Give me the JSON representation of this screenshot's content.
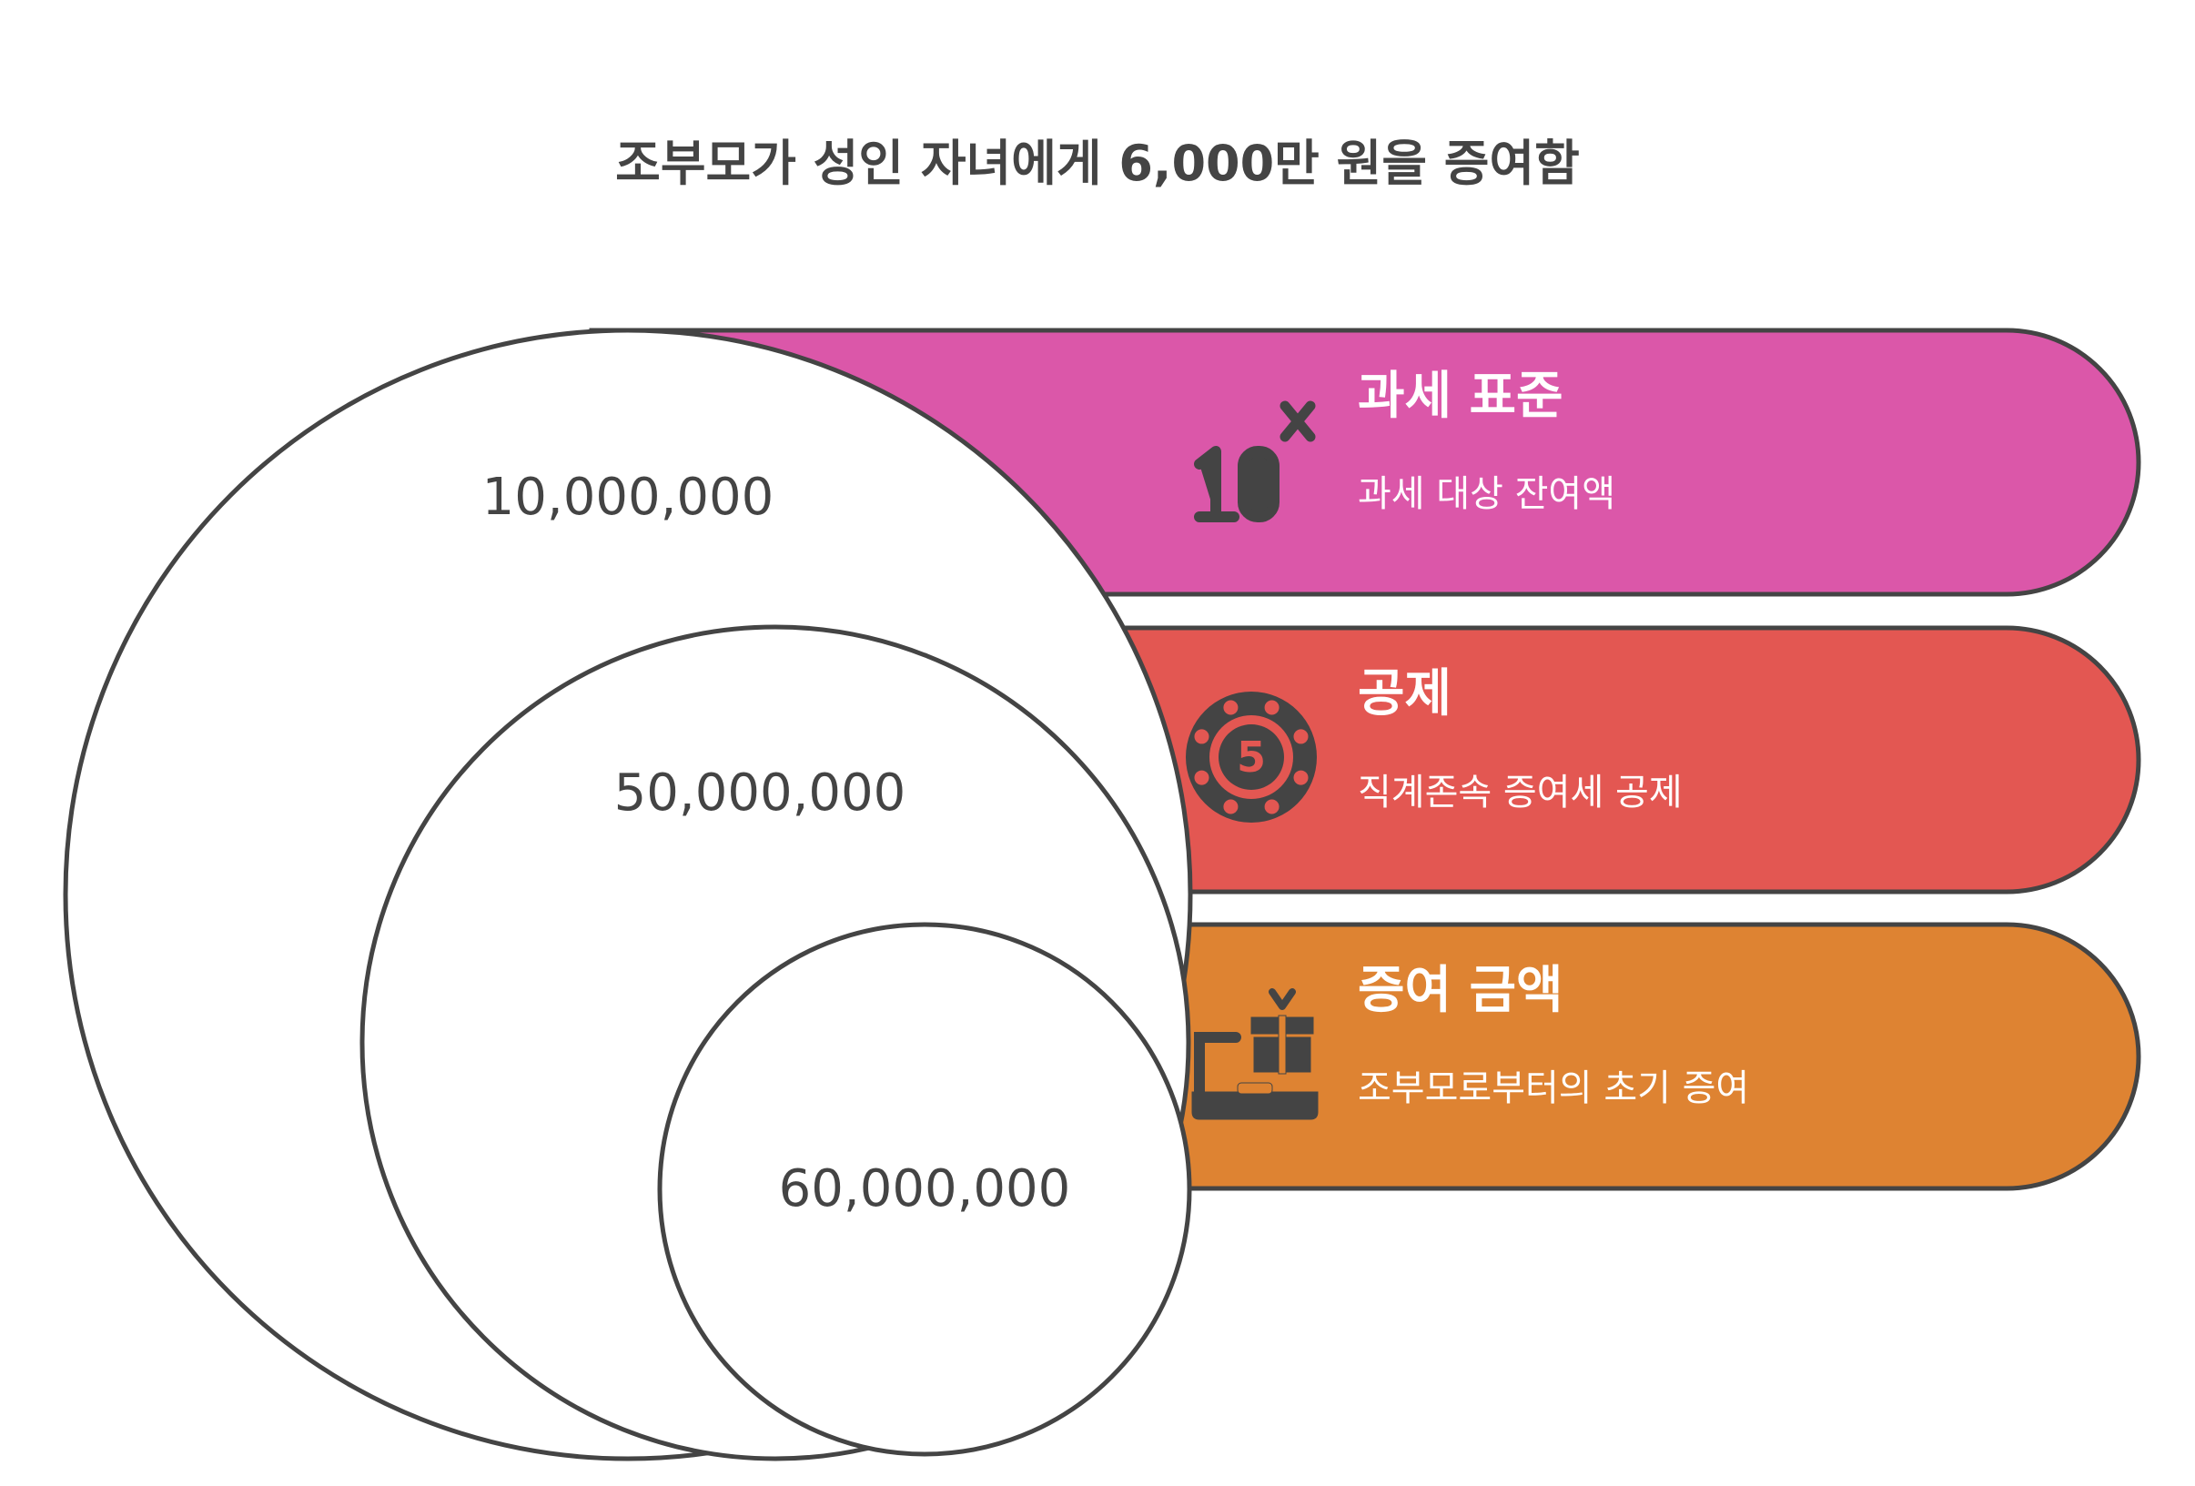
{
  "title": "조부모가 성인 자녀에게 6,000만 원을 증여함",
  "colors": {
    "outline": "#444444",
    "icon": "#444444",
    "circle_fill": "#ffffff",
    "text_dark": "#444444",
    "text_light": "#ffffff"
  },
  "layers": [
    {
      "heading": "과세 표준",
      "description": "과세 대상 잔여액",
      "value": "10,000,000",
      "color": "#DB57A9",
      "icon": "ten-to-the-x-icon"
    },
    {
      "heading": "공제",
      "description": "직계존속 증여세 공제",
      "value": "50,000,000",
      "color": "#E35752",
      "icon": "casino-chip-five-icon"
    },
    {
      "heading": "증여 금액",
      "description": "조부모로부터의 초기 증여",
      "value": "60,000,000",
      "color": "#DE8332",
      "icon": "gift-laptop-icon"
    }
  ]
}
